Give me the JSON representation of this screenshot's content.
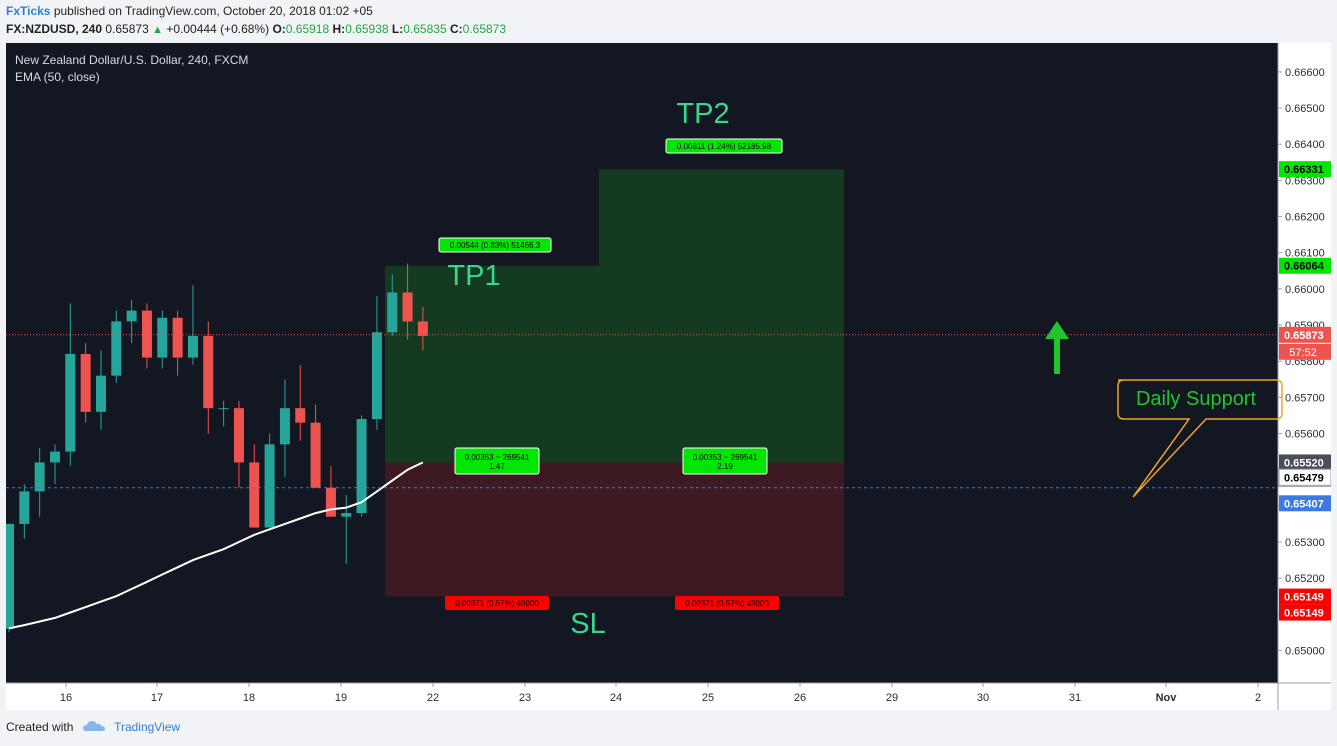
{
  "header": {
    "publisher": "FxTicks",
    "published_text": "published on TradingView.com, October 20, 2018 01:02 +05",
    "symbol": "FX:NZDUSD, 240",
    "last": "0.65873",
    "arrow": "▲",
    "change": "+0.00444 (+0.68%)",
    "o_label": "O:",
    "o_value": "0.65918",
    "h_label": "H:",
    "h_value": "0.65938",
    "l_label": "L:",
    "l_value": "0.65835",
    "c_label": "C:",
    "c_value": "0.65873"
  },
  "legend": {
    "line1": "New Zealand Dollar/U.S. Dollar, 240, FXCM",
    "line2": "EMA (50, close)"
  },
  "footer": {
    "created_with": "Created with",
    "brand": "TradingView"
  },
  "colors": {
    "bg": "#131722",
    "up": "#26a69a",
    "down": "#ef5350",
    "ema": "#ffffff",
    "profit_zone": "#143b21",
    "loss_zone": "#3d1a22",
    "tp_text": "#38d78a",
    "annotation": "#f0a22e",
    "arrow": "#22c52f",
    "axis_text": "#2a2e39"
  },
  "chart_data": {
    "type": "candlestick",
    "symbol": "FX:NZDUSD",
    "timeframe": "240",
    "ylim": [
      0.6491,
      0.6668
    ],
    "y_ticks": [
      "0.65000",
      "0.65100",
      "0.65200",
      "0.65300",
      "0.65400",
      "0.65500",
      "0.65600",
      "0.65700",
      "0.65800",
      "0.65900",
      "0.66000",
      "0.66100",
      "0.66200",
      "0.66300",
      "0.66400",
      "0.66500",
      "0.66600"
    ],
    "x_ticks": [
      "16",
      "17",
      "18",
      "19",
      "22",
      "23",
      "24",
      "25",
      "26",
      "29",
      "30",
      "31",
      "Nov",
      "2"
    ],
    "candles": [
      [
        0.6506,
        0.6535,
        0.6505,
        0.6535
      ],
      [
        0.6535,
        0.6546,
        0.6531,
        0.6544
      ],
      [
        0.6544,
        0.6556,
        0.6537,
        0.6552
      ],
      [
        0.6552,
        0.6557,
        0.6546,
        0.6555
      ],
      [
        0.6555,
        0.6596,
        0.6551,
        0.6582
      ],
      [
        0.6582,
        0.6585,
        0.6563,
        0.6566
      ],
      [
        0.6566,
        0.6583,
        0.6561,
        0.6576
      ],
      [
        0.6576,
        0.6594,
        0.6574,
        0.6591
      ],
      [
        0.6591,
        0.6597,
        0.6585,
        0.6594
      ],
      [
        0.6594,
        0.6596,
        0.6578,
        0.6581
      ],
      [
        0.6581,
        0.6594,
        0.6578,
        0.6592
      ],
      [
        0.6592,
        0.6594,
        0.6576,
        0.6581
      ],
      [
        0.6581,
        0.6601,
        0.6579,
        0.6587
      ],
      [
        0.6587,
        0.6591,
        0.656,
        0.6567
      ],
      [
        0.6567,
        0.6569,
        0.6562,
        0.6567
      ],
      [
        0.6567,
        0.6569,
        0.6545,
        0.6552
      ],
      [
        0.6552,
        0.6557,
        0.6534,
        0.6534
      ],
      [
        0.6534,
        0.656,
        0.6534,
        0.6557
      ],
      [
        0.6557,
        0.6575,
        0.6548,
        0.6567
      ],
      [
        0.6567,
        0.6579,
        0.6558,
        0.6563
      ],
      [
        0.6563,
        0.6568,
        0.6545,
        0.6545
      ],
      [
        0.6545,
        0.6551,
        0.6537,
        0.6537
      ],
      [
        0.6537,
        0.6543,
        0.6524,
        0.6538
      ],
      [
        0.6538,
        0.6565,
        0.6537,
        0.6564
      ],
      [
        0.6564,
        0.6598,
        0.6561,
        0.6588
      ],
      [
        0.6588,
        0.6604,
        0.6587,
        0.6599
      ],
      [
        0.6599,
        0.6607,
        0.6586,
        0.6591
      ],
      [
        0.6591,
        0.6595,
        0.6583,
        0.6587
      ]
    ],
    "ema_50": [
      0.65061,
      0.6507,
      0.6508,
      0.6509,
      0.65105,
      0.6512,
      0.65135,
      0.6515,
      0.6517,
      0.6519,
      0.6521,
      0.6523,
      0.6525,
      0.65265,
      0.6528,
      0.653,
      0.6532,
      0.65335,
      0.6535,
      0.65365,
      0.6538,
      0.6539,
      0.65395,
      0.6541,
      0.6544,
      0.6547,
      0.655,
      0.6552
    ],
    "position_1": {
      "entry": 0.6552,
      "stop": 0.65149,
      "target": 0.66064,
      "target_label": "0.00544 (0.83%) 51466.3",
      "mid_label": "0.00353 ~ 269541",
      "ratio": "1.47",
      "stop_label": "0.00371 (0.57%) 49000"
    },
    "position_2": {
      "entry": 0.6552,
      "stop": 0.65149,
      "target": 0.66331,
      "target_label": "0.00811 (1.24%) 52185.98",
      "mid_label": "0.00353 ~ 269541",
      "ratio": "2.19",
      "stop_label": "0.00371 (0.57%) 49000"
    },
    "current_price": 0.65873,
    "countdown": "57:52",
    "support_line": 0.6545,
    "annotations": {
      "tp1": "TP1",
      "tp2": "TP2",
      "sl": "SL",
      "support": "Daily Support"
    },
    "price_tags": [
      {
        "value": 0.66331,
        "label": "0.66331",
        "color": "#00e600",
        "text_color": "#000000"
      },
      {
        "value": 0.66064,
        "label": "0.66064",
        "color": "#00e600",
        "text_color": "#000000"
      },
      {
        "value": 0.65873,
        "label": "0.65873",
        "color": "#ef5350",
        "text_color": "#ffffff"
      },
      {
        "value": 0.6552,
        "label": "0.65520",
        "color": "#4a4e5a",
        "text_color": "#ffffff"
      },
      {
        "value": 0.6552,
        "label": "0.65520",
        "color": "#ffffff",
        "text_color": "#000000",
        "stack": 1
      },
      {
        "value": 0.65479,
        "label": "0.65479",
        "color": "#ffffff",
        "text_color": "#000000"
      },
      {
        "value": 0.65407,
        "label": "0.65407",
        "color": "#3b7ae0",
        "text_color": "#ffffff"
      },
      {
        "value": 0.65149,
        "label": "0.65149",
        "color": "#ff0000",
        "text_color": "#ffffff"
      },
      {
        "value": 0.65149,
        "label": "0.65149",
        "color": "#ff0000",
        "text_color": "#ffffff",
        "stack": 1
      }
    ]
  }
}
